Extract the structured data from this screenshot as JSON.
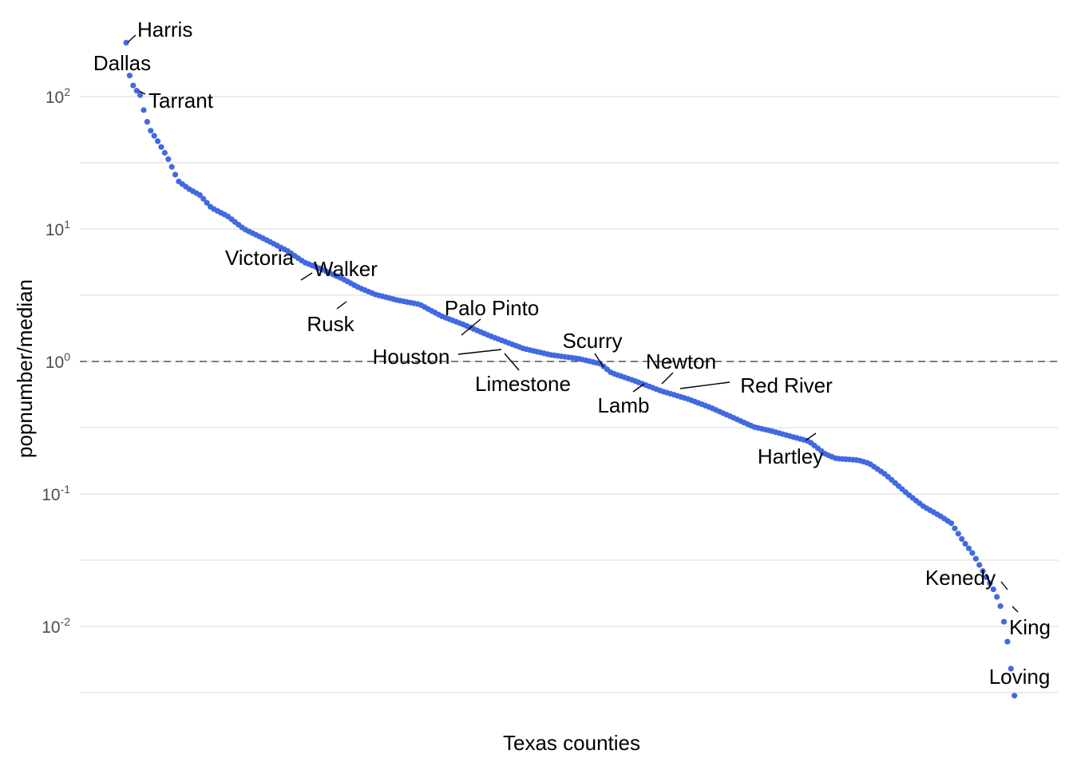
{
  "chart_data": {
    "type": "scatter",
    "xlabel": "Texas counties",
    "ylabel": "popnumber/median",
    "y_scale": "log10",
    "ylim": [
      0.0028,
      300
    ],
    "grid": true,
    "point_color": "#4169E1",
    "reference_line": {
      "y": 1,
      "style": "dashed",
      "color": "#555555"
    },
    "y_ticks": [
      {
        "base": "10",
        "exp": "-2",
        "value": 0.01
      },
      {
        "base": "10",
        "exp": "-1",
        "value": 0.1
      },
      {
        "base": "10",
        "exp": "0",
        "value": 1
      },
      {
        "base": "10",
        "exp": "1",
        "value": 10
      },
      {
        "base": "10",
        "exp": "2",
        "value": 100
      }
    ],
    "n_points": 254,
    "curve_knots": [
      [
        1,
        255
      ],
      [
        2,
        150
      ],
      [
        3,
        130
      ],
      [
        4,
        115
      ],
      [
        6,
        105
      ],
      [
        8,
        70
      ],
      [
        10,
        55
      ],
      [
        12,
        48
      ],
      [
        16,
        35
      ],
      [
        20,
        23
      ],
      [
        24,
        20
      ],
      [
        28,
        18
      ],
      [
        32,
        14.5
      ],
      [
        38,
        12.5
      ],
      [
        44,
        10
      ],
      [
        52,
        8.3
      ],
      [
        60,
        6.8
      ],
      [
        66,
        5.6
      ],
      [
        72,
        5.0
      ],
      [
        80,
        4.2
      ],
      [
        86,
        3.6
      ],
      [
        92,
        3.2
      ],
      [
        100,
        2.9
      ],
      [
        108,
        2.7
      ],
      [
        116,
        2.2
      ],
      [
        124,
        1.9
      ],
      [
        134,
        1.55
      ],
      [
        146,
        1.25
      ],
      [
        156,
        1.12
      ],
      [
        166,
        1.05
      ],
      [
        174,
        0.96
      ],
      [
        178,
        0.82
      ],
      [
        186,
        0.72
      ],
      [
        196,
        0.6
      ],
      [
        206,
        0.52
      ],
      [
        214,
        0.45
      ],
      [
        222,
        0.38
      ],
      [
        230,
        0.32
      ],
      [
        236,
        0.3
      ],
      [
        244,
        0.27
      ],
      [
        250,
        0.25
      ],
      [
        256,
        0.2
      ],
      [
        260,
        0.185
      ],
      [
        268,
        0.18
      ],
      [
        272,
        0.17
      ],
      [
        278,
        0.14
      ],
      [
        286,
        0.1
      ],
      [
        292,
        0.08
      ],
      [
        298,
        0.068
      ],
      [
        302,
        0.06
      ],
      [
        306,
        0.045
      ],
      [
        310,
        0.035
      ],
      [
        314,
        0.025
      ],
      [
        318,
        0.018
      ],
      [
        320,
        0.014
      ],
      [
        322,
        0.009
      ],
      [
        325,
        0.003
      ]
    ],
    "labeled_points": [
      {
        "name": "Harris",
        "x": 1,
        "y": 255
      },
      {
        "name": "Dallas",
        "x": 2,
        "y": 150
      },
      {
        "name": "Tarrant",
        "x": 4,
        "y": 112
      },
      {
        "name": "Victoria",
        "x": 70,
        "y": 5.0
      },
      {
        "name": "Walker",
        "x": 78,
        "y": 4.3
      },
      {
        "name": "Rusk",
        "x": 98,
        "y": 2.8
      },
      {
        "name": "Palo Pinto",
        "x": 148,
        "y": 1.55
      },
      {
        "name": "Houston",
        "x": 163,
        "y": 1.22
      },
      {
        "name": "Limestone",
        "x": 160,
        "y": 1.25
      },
      {
        "name": "Scurry",
        "x": 200,
        "y": 0.96
      },
      {
        "name": "Newton",
        "x": 216,
        "y": 0.7
      },
      {
        "name": "Lamb",
        "x": 212,
        "y": 0.72
      },
      {
        "name": "Red River",
        "x": 228,
        "y": 0.63
      },
      {
        "name": "Hartley",
        "x": 268,
        "y": 0.3
      },
      {
        "name": "Kenedy",
        "x": 333,
        "y": 0.019
      },
      {
        "name": "King",
        "x": 334,
        "y": 0.0145
      },
      {
        "name": "Loving",
        "x": 335,
        "y": 0.003
      }
    ]
  }
}
